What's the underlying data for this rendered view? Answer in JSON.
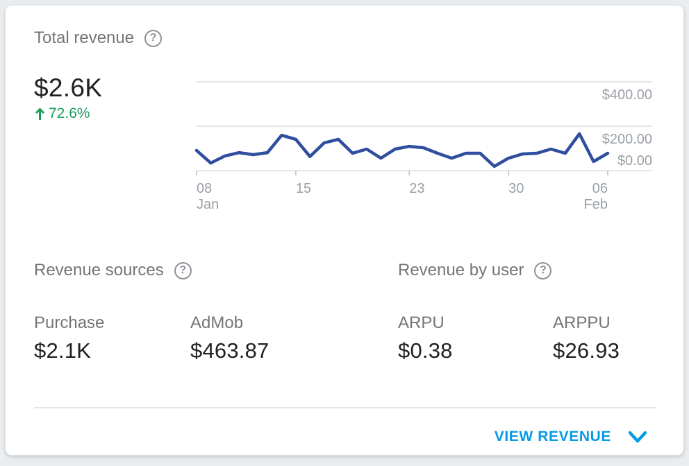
{
  "card": {
    "title": "Total revenue",
    "help_glyph": "?",
    "total_value": "$2.6K",
    "change": {
      "direction": "up",
      "value": "72.6%"
    },
    "sections": {
      "revenue_sources": {
        "title": "Revenue sources",
        "stats": [
          {
            "label": "Purchase",
            "value": "$2.1K"
          },
          {
            "label": "AdMob",
            "value": "$463.87"
          }
        ]
      },
      "revenue_by_user": {
        "title": "Revenue by user",
        "stats": [
          {
            "label": "ARPU",
            "value": "$0.38"
          },
          {
            "label": "ARPPU",
            "value": "$26.93"
          }
        ]
      }
    },
    "footer": {
      "action_label": "VIEW REVENUE"
    }
  },
  "colors": {
    "line": "#2f4e9e",
    "axis_text": "#9aa0a6",
    "gridline": "#e5e6e8",
    "tick": "#c9cccf",
    "positive_green": "#1a9e5c",
    "action_blue": "#039be5"
  },
  "chart_data": {
    "type": "line",
    "title": "Total revenue, daily",
    "x_start": "Jan 08",
    "x_end": "Feb 06",
    "frequency": "daily",
    "series": [
      {
        "name": "Total revenue",
        "values": [
          91,
          34,
          66,
          81,
          72,
          81,
          159,
          141,
          63,
          125,
          141,
          78,
          97,
          56,
          97,
          109,
          103,
          78,
          56,
          78,
          78,
          19,
          56,
          75,
          78,
          97,
          78,
          166,
          41,
          78
        ]
      }
    ],
    "y_axis": {
      "ylim": [
        0,
        400
      ],
      "ticks": [
        {
          "value": 400,
          "label": "$400.00"
        },
        {
          "value": 200,
          "label": "$200.00"
        },
        {
          "value": 0,
          "label": "$0.00"
        }
      ]
    },
    "x_axis": {
      "ticks": [
        {
          "index": 0,
          "label": "08",
          "month": "Jan",
          "align": "start"
        },
        {
          "index": 7,
          "label": "15",
          "month": "",
          "align": "start"
        },
        {
          "index": 15,
          "label": "23",
          "month": "",
          "align": "start"
        },
        {
          "index": 22,
          "label": "30",
          "month": "",
          "align": "start"
        },
        {
          "index": 29,
          "label": "06",
          "month": "Feb",
          "align": "end"
        }
      ]
    },
    "grid": true,
    "legend": false
  }
}
